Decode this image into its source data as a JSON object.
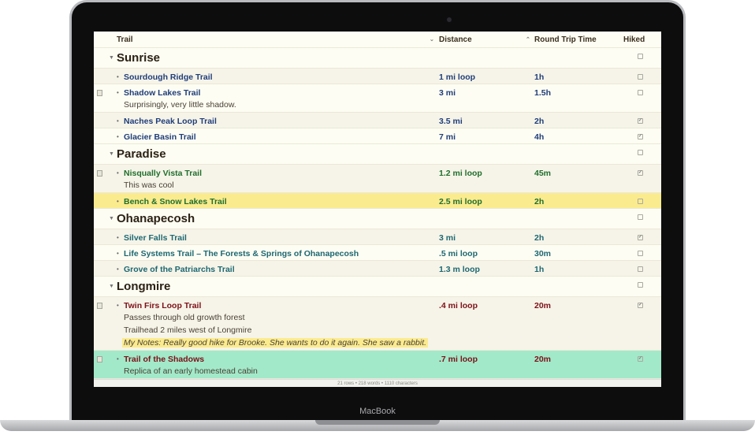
{
  "device": {
    "label": "MacBook"
  },
  "columns": {
    "trail": "Trail",
    "distance": "Distance",
    "round_trip": "Round Trip Time",
    "hiked": "Hiked"
  },
  "colors": {
    "Sunrise": "#1f3d7a",
    "Paradise": "#1f6e2c",
    "Ohanapecosh": "#1d6772",
    "Longmire": "#7d1019",
    "highlight_yellow": "#fbeb8f",
    "highlight_green": "#a2e9c9"
  },
  "groups": [
    {
      "title": "Sunrise",
      "hiked": false,
      "rows": [
        {
          "name": "Sourdough Ridge Trail",
          "distance": "1 mi loop",
          "time": "1h",
          "hiked": false
        },
        {
          "name": "Shadow Lakes Trail",
          "distance": "3 mi",
          "time": "1.5h",
          "hiked": false,
          "notes": [
            "Surprisingly, very little shadow."
          ]
        },
        {
          "name": "Naches Peak Loop Trail",
          "distance": "3.5 mi",
          "time": "2h",
          "hiked": true
        },
        {
          "name": "Glacier Basin Trail",
          "distance": "7 mi",
          "time": "4h",
          "hiked": true
        }
      ]
    },
    {
      "title": "Paradise",
      "hiked": false,
      "rows": [
        {
          "name": "Nisqually Vista Trail",
          "distance": "1.2 mi loop",
          "time": "45m",
          "hiked": true,
          "notes": [
            "This was cool"
          ]
        },
        {
          "name": "Bench & Snow Lakes Trail",
          "distance": "2.5 mi loop",
          "time": "2h",
          "hiked": false,
          "highlight": "yellow"
        }
      ]
    },
    {
      "title": "Ohanapecosh",
      "hiked": false,
      "rows": [
        {
          "name": "Silver Falls Trail",
          "distance": "3 mi",
          "time": "2h",
          "hiked": true
        },
        {
          "name": "Life Systems Trail – The Forests & Springs of Ohanapecosh",
          "distance": ".5 mi loop",
          "time": "30m",
          "hiked": false
        },
        {
          "name": "Grove of the Patriarchs Trail",
          "distance": "1.3 m loop",
          "time": "1h",
          "hiked": false
        }
      ]
    },
    {
      "title": "Longmire",
      "hiked": false,
      "rows": [
        {
          "name": "Twin Firs Loop Trail",
          "distance": ".4 mi loop",
          "time": "20m",
          "hiked": true,
          "notes": [
            "Passes through old growth forest",
            "Trailhead 2 miles west of Longmire"
          ],
          "my_notes": "My Notes: Really good hike for Brooke. She wants to do it again. She saw a rabbit."
        },
        {
          "name": "Trail of the Shadows",
          "distance": ".7 mi loop",
          "time": "20m",
          "hiked": true,
          "highlight": "green",
          "notes": [
            "Replica of an early homestead cabin"
          ]
        }
      ]
    }
  ],
  "status": "21 rows • 218 words • 1110 characters"
}
